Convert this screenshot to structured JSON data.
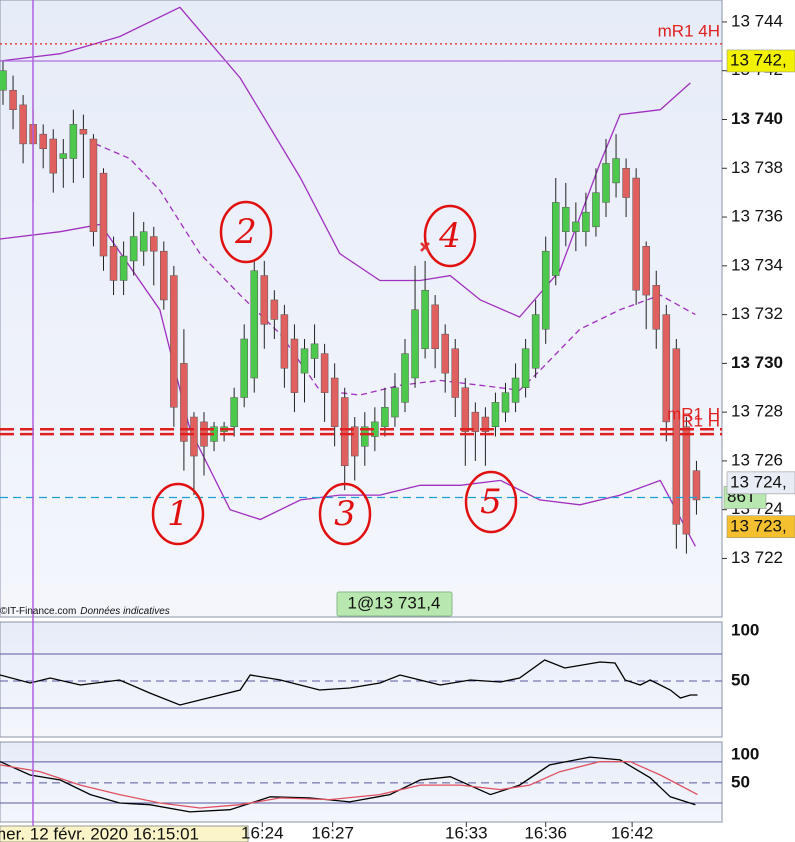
{
  "chart_data": {
    "type": "candlestick",
    "up_color": "#4cc84c",
    "down_color": "#e06060",
    "categories": [
      null,
      null,
      null,
      null,
      null,
      null,
      null,
      null,
      null,
      null,
      null,
      null,
      null,
      null,
      null,
      null,
      null,
      null,
      null,
      null,
      null,
      null,
      null,
      null,
      null,
      null,
      null,
      null,
      null,
      null,
      null,
      null,
      null,
      null,
      null,
      null,
      null,
      null,
      null,
      null,
      null,
      null,
      null,
      null,
      null,
      null,
      null,
      null,
      null,
      null,
      null,
      null,
      null,
      null,
      null,
      null,
      null,
      null,
      null,
      null,
      null,
      null,
      null,
      null,
      null,
      null,
      null,
      null,
      null,
      null
    ],
    "open": [
      13741.2,
      13741.2,
      13740.6,
      13739.8,
      13739.4,
      13739.2,
      13738.4,
      13738.4,
      13739.6,
      13739.2,
      13737.8,
      13734.8,
      13733.4,
      13734.2,
      13734.6,
      13735.2,
      13734.6,
      13733.6,
      13730.0,
      13727.8,
      13727.6,
      13726.8,
      13727.2,
      13727.4,
      13728.6,
      13729.4,
      13733.6,
      13732.6,
      13732.0,
      13731.0,
      13729.6,
      13730.2,
      13730.4,
      13729.4,
      13728.6,
      13727.4,
      13726.6,
      13727.0,
      13727.4,
      13727.8,
      13728.4,
      13729.4,
      13730.6,
      13732.4,
      13731.2,
      13730.6,
      13729.0,
      13728.0,
      13727.8,
      13727.4,
      13728.0,
      13728.4,
      13729.0,
      13729.8,
      13731.4,
      13733.6,
      13735.4,
      13735.4,
      13735.4,
      13735.6,
      13736.6,
      13737.4,
      13738.0,
      13737.6,
      13734.8,
      13733.2,
      13732.0,
      13730.6,
      13727.4,
      13725.6
    ],
    "high": [
      13742.4,
      13741.8,
      13741.0,
      13740.4,
      13739.8,
      13739.6,
      13739.2,
      13740.4,
      13740.2,
      13739.4,
      13738.0,
      13735.2,
      13735.0,
      13736.2,
      13735.8,
      13735.6,
      13735.0,
      13734.0,
      13731.4,
      13728.0,
      13728.0,
      13727.6,
      13727.6,
      13729.0,
      13731.6,
      13734.2,
      13734.2,
      13733.0,
      13732.4,
      13731.6,
      13731.0,
      13731.6,
      13730.8,
      13730.0,
      13729.0,
      13727.8,
      13728.0,
      13728.2,
      13729.0,
      13729.6,
      13731.0,
      13734.0,
      13734.2,
      13732.8,
      13731.6,
      13731.0,
      13729.4,
      13728.4,
      13728.2,
      13728.8,
      13729.2,
      13730.0,
      13731.0,
      13732.6,
      13735.2,
      13737.6,
      13737.4,
      13736.6,
      13737.0,
      13738.0,
      13739.2,
      13739.4,
      13738.4,
      13738.0,
      13735.0,
      13733.8,
      13732.4,
      13731.0,
      13727.8,
      13726.0
    ],
    "low": [
      13740.6,
      13739.6,
      13738.2,
      13736.6,
      13738.0,
      13737.0,
      13737.2,
      13737.4,
      13737.6,
      13734.8,
      13733.8,
      13732.8,
      13732.8,
      13733.6,
      13734.0,
      13733.2,
      13732.2,
      13727.4,
      13725.6,
      13724.6,
      13725.4,
      13726.4,
      13726.8,
      13727.0,
      13728.2,
      13728.8,
      13730.6,
      13731.0,
      13729.0,
      13728.0,
      13728.4,
      13729.4,
      13727.6,
      13726.6,
      13724.8,
      13725.2,
      13725.8,
      13726.4,
      13727.0,
      13727.4,
      13728.0,
      13729.0,
      13730.2,
      13729.8,
      13728.8,
      13727.8,
      13725.8,
      13726.0,
      13725.8,
      13727.0,
      13727.6,
      13728.0,
      13728.6,
      13729.4,
      13730.8,
      13733.2,
      13734.8,
      13734.6,
      13734.8,
      13735.2,
      13736.0,
      13736.8,
      13736.0,
      13732.4,
      13731.4,
      13730.6,
      13726.8,
      13722.4,
      13722.2,
      13723.8
    ],
    "close": [
      13742.0,
      13740.4,
      13739.0,
      13739.0,
      13738.8,
      13737.8,
      13738.6,
      13739.8,
      13739.4,
      13735.4,
      13734.4,
      13733.4,
      13734.4,
      13735.2,
      13735.4,
      13734.6,
      13732.6,
      13728.2,
      13726.8,
      13726.2,
      13726.6,
      13727.4,
      13727.4,
      13728.6,
      13731.0,
      13733.8,
      13731.6,
      13731.8,
      13729.8,
      13728.8,
      13730.6,
      13730.8,
      13728.8,
      13727.4,
      13725.8,
      13726.2,
      13727.4,
      13727.6,
      13728.2,
      13729.0,
      13730.4,
      13732.2,
      13733.0,
      13730.6,
      13729.6,
      13728.6,
      13727.2,
      13727.2,
      13727.2,
      13728.4,
      13728.8,
      13729.4,
      13730.6,
      13732.0,
      13734.6,
      13736.6,
      13736.4,
      13735.8,
      13736.2,
      13737.0,
      13738.2,
      13738.4,
      13736.8,
      13733.0,
      13732.8,
      13731.4,
      13727.6,
      13723.4,
      13723.0,
      13724.4
    ],
    "ylim": [
      13719.6,
      13744.9
    ],
    "yticks": [
      {
        "value": 13722,
        "label": "13 722"
      },
      {
        "value": 13724,
        "label": "13 724"
      },
      {
        "value": 13726,
        "label": "13 726"
      },
      {
        "value": 13728,
        "label": "13 728"
      },
      {
        "value": 13730,
        "label": "13 730"
      },
      {
        "value": 13732,
        "label": "13 732"
      },
      {
        "value": 13734,
        "label": "13 734"
      },
      {
        "value": 13736,
        "label": "13 736"
      },
      {
        "value": 13738,
        "label": "13 738"
      },
      {
        "value": 13740,
        "label": "13 740"
      },
      {
        "value": 13742,
        "label": "13 742"
      },
      {
        "value": 13744,
        "label": "13 744"
      }
    ],
    "xticks": [
      {
        "value": 25.8,
        "label": "16:24"
      },
      {
        "value": 32.8,
        "label": "16:27"
      },
      {
        "value": 46.1,
        "label": "16:33"
      },
      {
        "value": 54,
        "label": "16:36"
      },
      {
        "value": 62.6,
        "label": "16:42"
      }
    ],
    "overlays": [
      {
        "color": "#a030c0",
        "dash": "none",
        "x": [
          -0.3,
          5.7,
          11.6,
          17.6,
          23.6,
          29.6,
          33.5,
          37.5,
          41.5,
          44.5,
          47.5,
          51.4,
          55.4,
          59.4,
          61.4,
          65.4,
          68.4
        ],
        "values": [
          13742.4,
          13742.7,
          13743.4,
          13744.6,
          13741.7,
          13737.6,
          13734.5,
          13733.4,
          13733.4,
          13733.6,
          13732.6,
          13731.9,
          13733.8,
          13738.2,
          13740.2,
          13740.4,
          13741.5
        ]
      },
      {
        "color": "#a030c0",
        "dash": "6,4",
        "x": [
          9.2,
          12.6,
          15.6,
          19.6,
          23.6,
          27.6,
          31.5,
          35.5,
          39.5,
          43.5,
          47.5,
          51.4,
          53.4,
          57.4,
          61.4,
          65.4,
          68.9
        ],
        "values": [
          13739.0,
          13738.4,
          13737.1,
          13734.5,
          13732.8,
          13731.2,
          13728.9,
          13728.7,
          13729.1,
          13729.3,
          13729.1,
          13728.9,
          13729.7,
          13731.4,
          13732.2,
          13732.8,
          13732.0
        ]
      },
      {
        "color": "#a030c0",
        "dash": "none",
        "x": [
          -0.3,
          5.7,
          9.7,
          15.6,
          18.6,
          22.6,
          25.6,
          29.6,
          33.5,
          37.5,
          41.5,
          45.5,
          49.5,
          53.4,
          57.4,
          61.4,
          65.4,
          68.9
        ],
        "values": [
          13735.1,
          13735.4,
          13735.7,
          13732.2,
          13727.3,
          13724.0,
          13723.6,
          13724.4,
          13724.6,
          13724.6,
          13725.0,
          13725.0,
          13725.2,
          13724.4,
          13724.2,
          13724.6,
          13725.2,
          13722.5
        ]
      }
    ],
    "levels": [
      {
        "label": "mR1 4H",
        "value": 13743.1,
        "color": "#e02020",
        "dash": "2,3"
      },
      {
        "tag": "13 742,",
        "value": 13742.4,
        "color": "#b070e0",
        "dash": "none",
        "tag_color": "#f2f200"
      },
      {
        "label": "mR1 H",
        "value": 13727.3,
        "color": "#e02020",
        "dash": "14,6"
      },
      {
        "label": "R1 H",
        "value": 13727.1,
        "color": "#e02020",
        "dash": "14,6"
      },
      {
        "tag": "86T",
        "value": 13724.5,
        "color": "#20a0d0",
        "dash": "8,5",
        "tag_color": "#b8e8b0"
      }
    ],
    "price_tags": [
      {
        "tag": "13 724,",
        "value": 13725.1,
        "tag_color": "#e8ecf4"
      },
      {
        "tag": "13 723,",
        "value": 13723.3,
        "tag_color": "#f5c030"
      }
    ],
    "annotations": [
      "1",
      "2",
      "3",
      "4",
      "5"
    ],
    "order_label": "1@13 731,4",
    "credit": "©IT-Finance.com",
    "credit_note": "Données indicatives",
    "cursor_label": "mer. 12 févr. 2020 16:15:01",
    "panels": [
      {
        "ylim": [
          -6,
          109
        ],
        "yticks": [
          100,
          50
        ],
        "levels": [
          77,
          23
        ],
        "mid": 50,
        "series": [
          {
            "color": "#000000",
            "x": [
              -0.3,
              2.7,
              4.7,
              7.7,
              11.6,
              14.6,
              17.6,
              21.6,
              23.6,
              24.6,
              27.6,
              31.5,
              34.5,
              37.5,
              39.5,
              41.5,
              43.5,
              46.5,
              49.5,
              51.4,
              53.9,
              55.9,
              59.4,
              60.9,
              61.9,
              63.4,
              64.4,
              66.4,
              67.4,
              68.4,
              69.1
            ],
            "values": [
              56,
              48,
              53,
              46,
              51,
              38,
              26,
              36,
              41,
              56,
              51,
              41,
              43,
              48,
              56,
              51,
              46,
              51,
              49,
              53,
              71,
              63,
              69,
              68,
              51,
              46,
              51,
              41,
              33,
              36,
              36
            ]
          }
        ]
      },
      {
        "ylim": [
          -20,
          123
        ],
        "yticks": [
          100,
          50
        ],
        "levels": [
          87.5,
          14
        ],
        "mid": 50,
        "series": [
          {
            "color": "#000000",
            "x": [
              -0.3,
              2.7,
              5.7,
              8.7,
              11.6,
              14.6,
              18.6,
              22.6,
              26.6,
              30.5,
              34.5,
              38.5,
              41.5,
              44.5,
              48.5,
              51.4,
              54.4,
              58.4,
              61.4,
              64.4,
              66.4,
              68.9
            ],
            "values": [
              88,
              64,
              55,
              29,
              14,
              11,
              -2,
              2,
              25,
              23,
              16,
              29,
              55,
              61,
              29,
              46,
              82,
              96,
              91,
              59,
              25,
              11
            ]
          },
          {
            "color": "#e05060",
            "x": [
              -0.3,
              3.7,
              7.7,
              11.6,
              15.6,
              19.6,
              23.6,
              27.6,
              32.5,
              37.5,
              41.5,
              45.5,
              49.5,
              52.4,
              55.4,
              59.4,
              62.4,
              65.4,
              69.1
            ],
            "values": [
              82,
              70,
              46,
              29,
              14,
              5,
              11,
              23,
              20,
              29,
              46,
              46,
              38,
              46,
              70,
              88,
              88,
              64,
              29
            ]
          }
        ]
      }
    ]
  }
}
